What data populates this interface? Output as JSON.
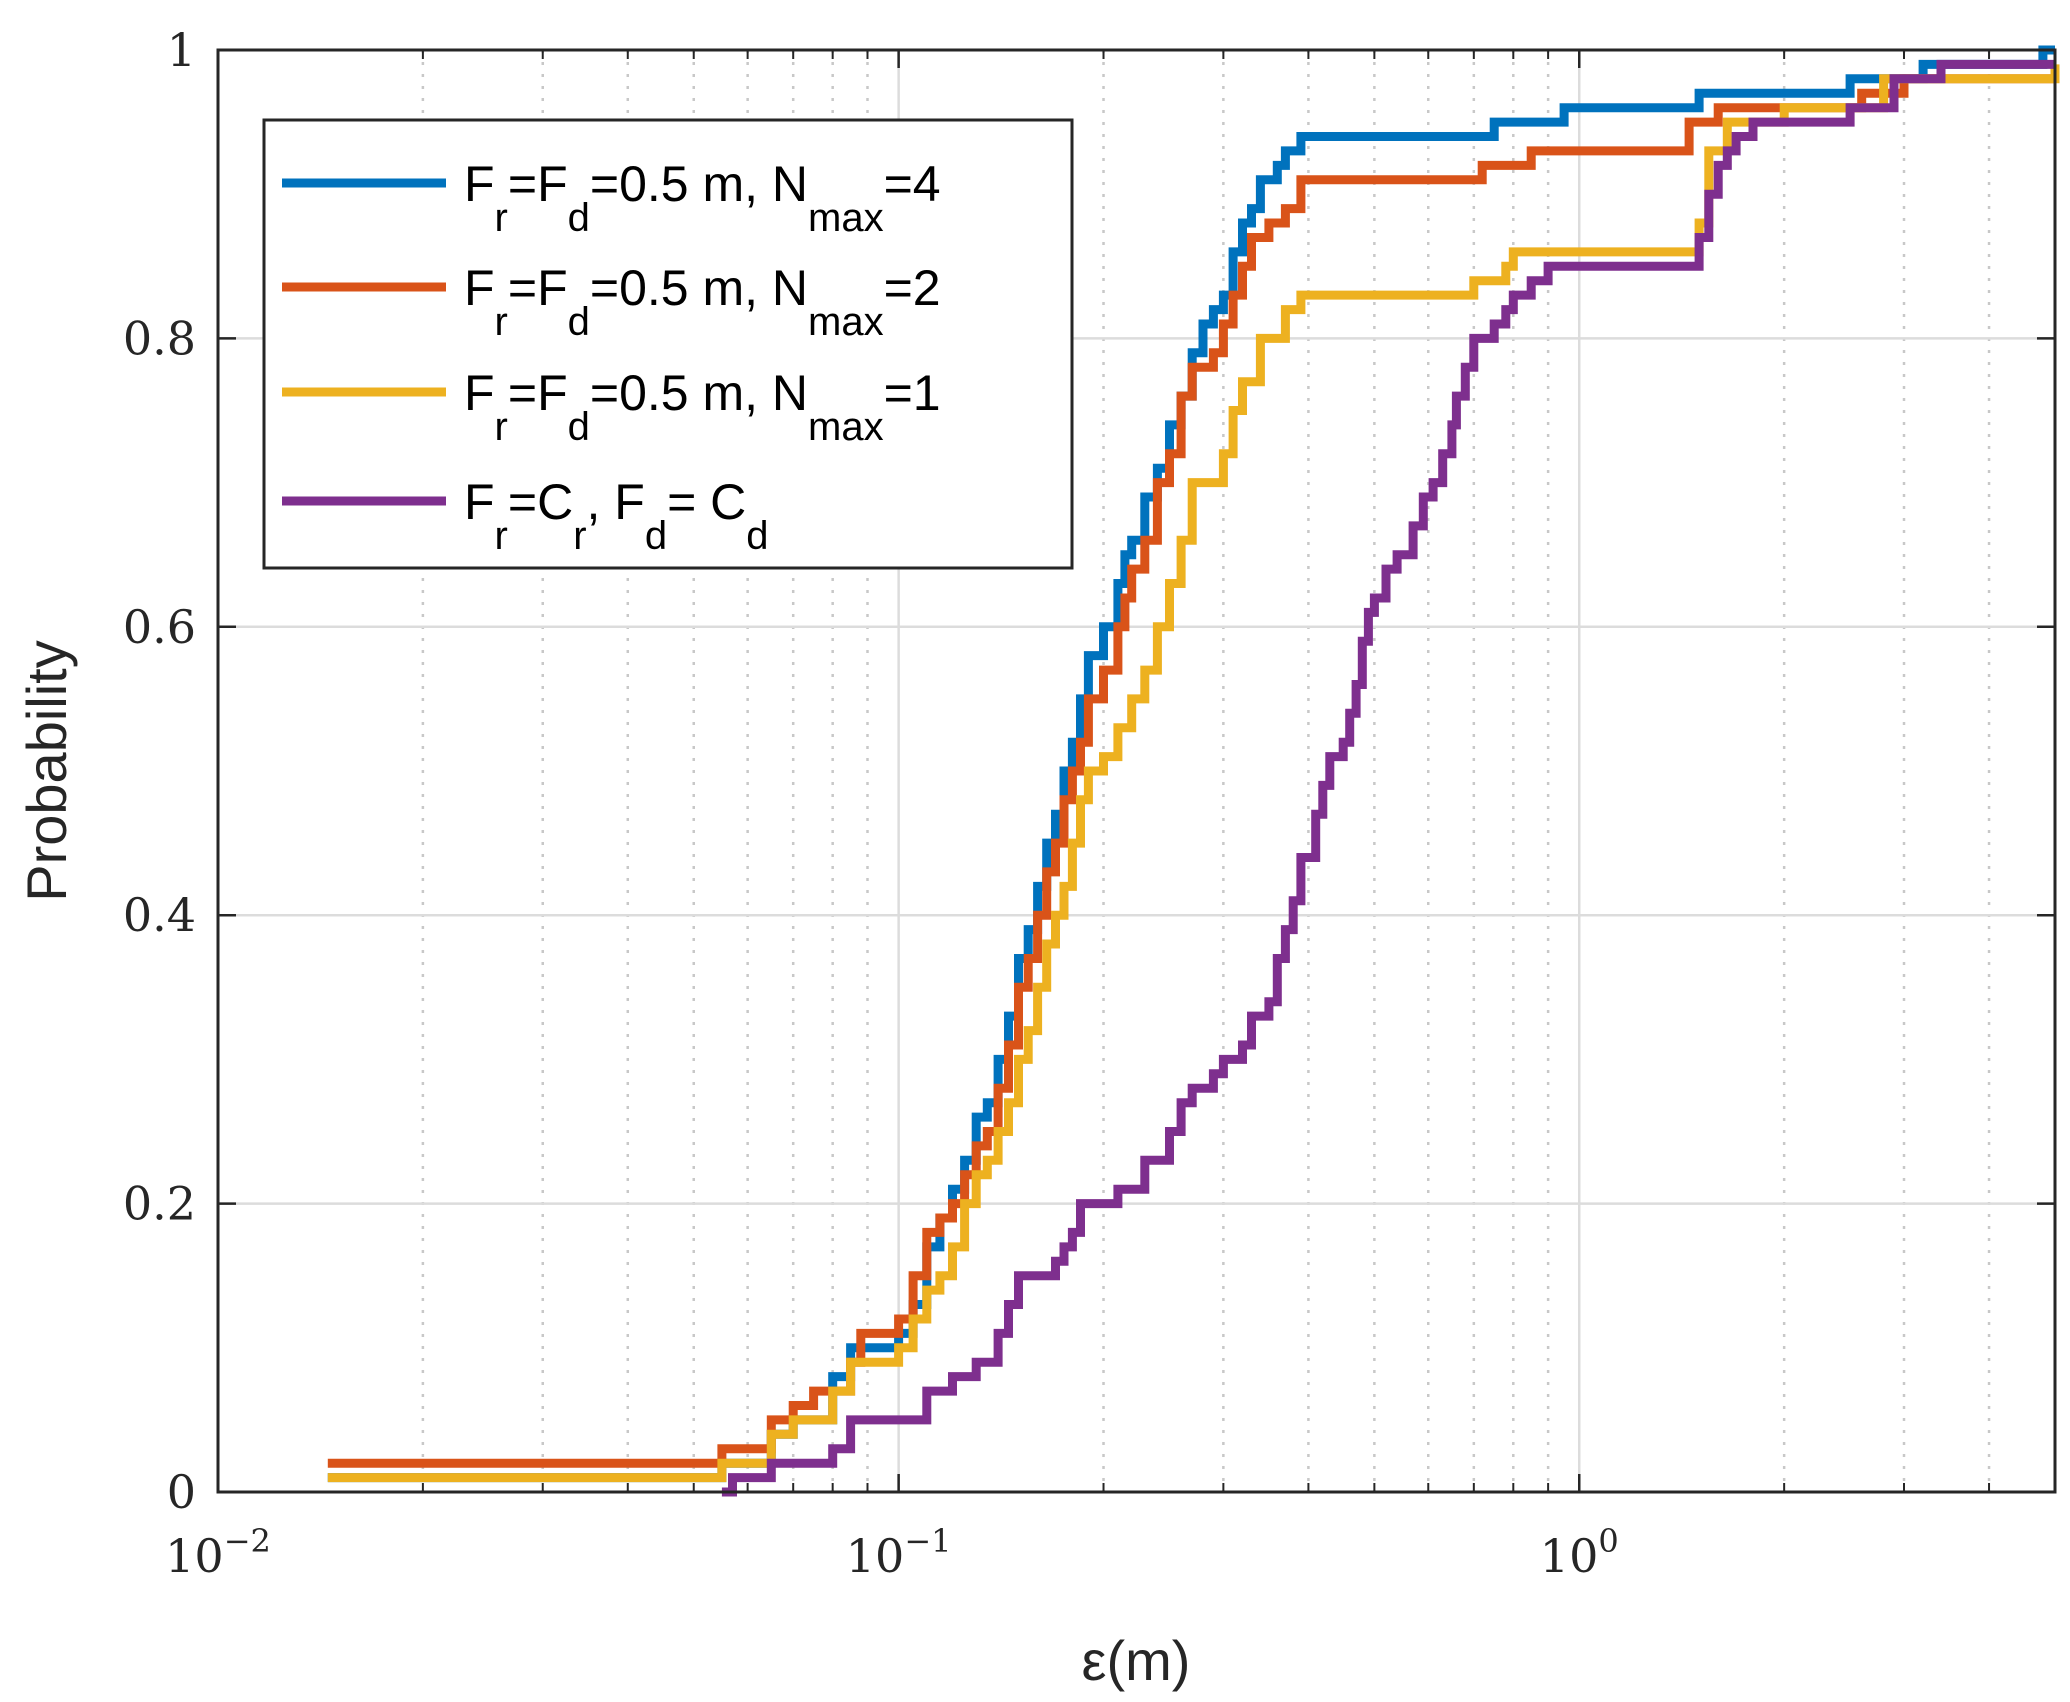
{
  "chart_data": {
    "type": "line",
    "subtype": "empirical-cdf",
    "xscale": "log",
    "xlim": [
      0.01,
      5.0
    ],
    "ylim": [
      0,
      1
    ],
    "xlabel": "ε(m)",
    "ylabel": "Probability",
    "grid": true,
    "minor_grid": true,
    "legend_location": "top-left",
    "x_ticks": [
      {
        "value": 0.01,
        "base": "10",
        "exp": "−2"
      },
      {
        "value": 0.1,
        "base": "10",
        "exp": "−1"
      },
      {
        "value": 1,
        "base": "10",
        "exp": "0"
      }
    ],
    "y_ticks": [
      {
        "value": 0,
        "label": "0"
      },
      {
        "value": 0.2,
        "label": "0.2"
      },
      {
        "value": 0.4,
        "label": "0.4"
      },
      {
        "value": 0.6,
        "label": "0.6"
      },
      {
        "value": 0.8,
        "label": "0.8"
      },
      {
        "value": 1,
        "label": "1"
      }
    ],
    "series": [
      {
        "name": "F_r=F_d=0.5 m, N_max=4",
        "color": "#0072BD",
        "legend_parts": [
          {
            "t": "F"
          },
          {
            "t": "r",
            "sub": true
          },
          {
            "t": "=F"
          },
          {
            "t": "d",
            "sub": true
          },
          {
            "t": "=0.5 m, N"
          },
          {
            "t": "max",
            "sub": true
          },
          {
            "t": "=4"
          }
        ],
        "points": [
          [
            0.0145,
            0.01
          ],
          [
            0.055,
            0.02
          ],
          [
            0.065,
            0.04
          ],
          [
            0.07,
            0.05
          ],
          [
            0.08,
            0.08
          ],
          [
            0.085,
            0.1
          ],
          [
            0.1,
            0.11
          ],
          [
            0.105,
            0.13
          ],
          [
            0.11,
            0.17
          ],
          [
            0.115,
            0.19
          ],
          [
            0.12,
            0.21
          ],
          [
            0.125,
            0.23
          ],
          [
            0.13,
            0.26
          ],
          [
            0.135,
            0.27
          ],
          [
            0.14,
            0.3
          ],
          [
            0.145,
            0.33
          ],
          [
            0.15,
            0.37
          ],
          [
            0.155,
            0.39
          ],
          [
            0.16,
            0.42
          ],
          [
            0.165,
            0.45
          ],
          [
            0.17,
            0.47
          ],
          [
            0.175,
            0.5
          ],
          [
            0.18,
            0.52
          ],
          [
            0.185,
            0.55
          ],
          [
            0.19,
            0.58
          ],
          [
            0.2,
            0.6
          ],
          [
            0.21,
            0.63
          ],
          [
            0.215,
            0.65
          ],
          [
            0.22,
            0.66
          ],
          [
            0.23,
            0.69
          ],
          [
            0.24,
            0.71
          ],
          [
            0.25,
            0.74
          ],
          [
            0.26,
            0.76
          ],
          [
            0.27,
            0.79
          ],
          [
            0.28,
            0.81
          ],
          [
            0.29,
            0.82
          ],
          [
            0.3,
            0.83
          ],
          [
            0.31,
            0.86
          ],
          [
            0.32,
            0.88
          ],
          [
            0.33,
            0.89
          ],
          [
            0.34,
            0.91
          ],
          [
            0.36,
            0.92
          ],
          [
            0.37,
            0.93
          ],
          [
            0.39,
            0.94
          ],
          [
            0.75,
            0.95
          ],
          [
            0.8,
            0.95
          ],
          [
            0.95,
            0.96
          ],
          [
            1.5,
            0.97
          ],
          [
            2.5,
            0.98
          ],
          [
            3.2,
            0.99
          ],
          [
            4.8,
            1.0
          ]
        ]
      },
      {
        "name": "F_r=F_d=0.5 m, N_max=2",
        "color": "#D95319",
        "legend_parts": [
          {
            "t": "F"
          },
          {
            "t": "r",
            "sub": true
          },
          {
            "t": "=F"
          },
          {
            "t": "d",
            "sub": true
          },
          {
            "t": "=0.5 m, N"
          },
          {
            "t": "max",
            "sub": true
          },
          {
            "t": "=2"
          }
        ],
        "points": [
          [
            0.0145,
            0.02
          ],
          [
            0.055,
            0.03
          ],
          [
            0.065,
            0.05
          ],
          [
            0.07,
            0.06
          ],
          [
            0.075,
            0.07
          ],
          [
            0.085,
            0.09
          ],
          [
            0.088,
            0.11
          ],
          [
            0.1,
            0.12
          ],
          [
            0.105,
            0.15
          ],
          [
            0.11,
            0.18
          ],
          [
            0.115,
            0.19
          ],
          [
            0.12,
            0.2
          ],
          [
            0.125,
            0.22
          ],
          [
            0.13,
            0.24
          ],
          [
            0.135,
            0.25
          ],
          [
            0.14,
            0.28
          ],
          [
            0.145,
            0.31
          ],
          [
            0.15,
            0.35
          ],
          [
            0.155,
            0.37
          ],
          [
            0.16,
            0.4
          ],
          [
            0.165,
            0.43
          ],
          [
            0.17,
            0.45
          ],
          [
            0.175,
            0.48
          ],
          [
            0.18,
            0.5
          ],
          [
            0.185,
            0.52
          ],
          [
            0.19,
            0.55
          ],
          [
            0.2,
            0.57
          ],
          [
            0.21,
            0.6
          ],
          [
            0.215,
            0.62
          ],
          [
            0.22,
            0.64
          ],
          [
            0.23,
            0.66
          ],
          [
            0.24,
            0.7
          ],
          [
            0.25,
            0.72
          ],
          [
            0.26,
            0.76
          ],
          [
            0.27,
            0.78
          ],
          [
            0.29,
            0.79
          ],
          [
            0.3,
            0.81
          ],
          [
            0.31,
            0.83
          ],
          [
            0.32,
            0.85
          ],
          [
            0.33,
            0.87
          ],
          [
            0.35,
            0.88
          ],
          [
            0.37,
            0.89
          ],
          [
            0.39,
            0.91
          ],
          [
            0.72,
            0.92
          ],
          [
            0.85,
            0.93
          ],
          [
            1.45,
            0.95
          ],
          [
            1.6,
            0.96
          ],
          [
            2.6,
            0.97
          ],
          [
            3.0,
            0.98
          ],
          [
            5.0,
            0.98
          ]
        ]
      },
      {
        "name": "F_r=F_d=0.5 m, N_max=1",
        "color": "#EDB120",
        "legend_parts": [
          {
            "t": "F"
          },
          {
            "t": "r",
            "sub": true
          },
          {
            "t": "=F"
          },
          {
            "t": "d",
            "sub": true
          },
          {
            "t": "=0.5 m, N"
          },
          {
            "t": "max",
            "sub": true
          },
          {
            "t": "=1"
          }
        ],
        "points": [
          [
            0.0145,
            0.01
          ],
          [
            0.055,
            0.02
          ],
          [
            0.065,
            0.04
          ],
          [
            0.07,
            0.05
          ],
          [
            0.08,
            0.07
          ],
          [
            0.085,
            0.09
          ],
          [
            0.1,
            0.1
          ],
          [
            0.105,
            0.12
          ],
          [
            0.11,
            0.14
          ],
          [
            0.115,
            0.15
          ],
          [
            0.12,
            0.17
          ],
          [
            0.125,
            0.2
          ],
          [
            0.13,
            0.22
          ],
          [
            0.135,
            0.23
          ],
          [
            0.14,
            0.25
          ],
          [
            0.145,
            0.27
          ],
          [
            0.15,
            0.3
          ],
          [
            0.155,
            0.32
          ],
          [
            0.16,
            0.35
          ],
          [
            0.165,
            0.38
          ],
          [
            0.17,
            0.4
          ],
          [
            0.175,
            0.42
          ],
          [
            0.18,
            0.45
          ],
          [
            0.185,
            0.48
          ],
          [
            0.19,
            0.5
          ],
          [
            0.2,
            0.51
          ],
          [
            0.21,
            0.53
          ],
          [
            0.22,
            0.55
          ],
          [
            0.23,
            0.57
          ],
          [
            0.24,
            0.6
          ],
          [
            0.25,
            0.63
          ],
          [
            0.26,
            0.66
          ],
          [
            0.27,
            0.7
          ],
          [
            0.3,
            0.72
          ],
          [
            0.31,
            0.75
          ],
          [
            0.32,
            0.77
          ],
          [
            0.34,
            0.8
          ],
          [
            0.37,
            0.82
          ],
          [
            0.39,
            0.83
          ],
          [
            0.7,
            0.84
          ],
          [
            0.78,
            0.85
          ],
          [
            0.8,
            0.86
          ],
          [
            1.5,
            0.88
          ],
          [
            1.55,
            0.93
          ],
          [
            1.65,
            0.95
          ],
          [
            2.0,
            0.96
          ],
          [
            2.8,
            0.98
          ],
          [
            5.0,
            0.99
          ]
        ]
      },
      {
        "name": "F_r=C_r, F_d= C_d",
        "color": "#7E2F8E",
        "legend_parts": [
          {
            "t": "F"
          },
          {
            "t": "r",
            "sub": true
          },
          {
            "t": "=C"
          },
          {
            "t": "r",
            "sub": true
          },
          {
            "t": ", F"
          },
          {
            "t": "d",
            "sub": true
          },
          {
            "t": "= C"
          },
          {
            "t": "d",
            "sub": true
          }
        ],
        "points": [
          [
            0.055,
            0.0
          ],
          [
            0.057,
            0.01
          ],
          [
            0.065,
            0.02
          ],
          [
            0.08,
            0.03
          ],
          [
            0.085,
            0.05
          ],
          [
            0.11,
            0.07
          ],
          [
            0.12,
            0.08
          ],
          [
            0.13,
            0.09
          ],
          [
            0.14,
            0.11
          ],
          [
            0.145,
            0.13
          ],
          [
            0.15,
            0.15
          ],
          [
            0.17,
            0.16
          ],
          [
            0.175,
            0.17
          ],
          [
            0.18,
            0.18
          ],
          [
            0.185,
            0.2
          ],
          [
            0.21,
            0.21
          ],
          [
            0.23,
            0.23
          ],
          [
            0.25,
            0.25
          ],
          [
            0.26,
            0.27
          ],
          [
            0.27,
            0.28
          ],
          [
            0.29,
            0.29
          ],
          [
            0.3,
            0.3
          ],
          [
            0.32,
            0.31
          ],
          [
            0.33,
            0.33
          ],
          [
            0.35,
            0.34
          ],
          [
            0.36,
            0.37
          ],
          [
            0.37,
            0.39
          ],
          [
            0.38,
            0.41
          ],
          [
            0.39,
            0.44
          ],
          [
            0.41,
            0.47
          ],
          [
            0.42,
            0.49
          ],
          [
            0.43,
            0.51
          ],
          [
            0.45,
            0.52
          ],
          [
            0.46,
            0.54
          ],
          [
            0.47,
            0.56
          ],
          [
            0.48,
            0.59
          ],
          [
            0.49,
            0.61
          ],
          [
            0.5,
            0.62
          ],
          [
            0.52,
            0.64
          ],
          [
            0.54,
            0.65
          ],
          [
            0.57,
            0.67
          ],
          [
            0.59,
            0.69
          ],
          [
            0.61,
            0.7
          ],
          [
            0.63,
            0.72
          ],
          [
            0.65,
            0.74
          ],
          [
            0.66,
            0.76
          ],
          [
            0.68,
            0.78
          ],
          [
            0.7,
            0.8
          ],
          [
            0.75,
            0.81
          ],
          [
            0.78,
            0.82
          ],
          [
            0.8,
            0.83
          ],
          [
            0.85,
            0.84
          ],
          [
            0.9,
            0.85
          ],
          [
            1.5,
            0.87
          ],
          [
            1.55,
            0.9
          ],
          [
            1.6,
            0.92
          ],
          [
            1.65,
            0.93
          ],
          [
            1.7,
            0.94
          ],
          [
            1.8,
            0.95
          ],
          [
            2.5,
            0.96
          ],
          [
            2.9,
            0.98
          ],
          [
            3.4,
            0.99
          ],
          [
            5.0,
            0.99
          ]
        ]
      }
    ]
  }
}
